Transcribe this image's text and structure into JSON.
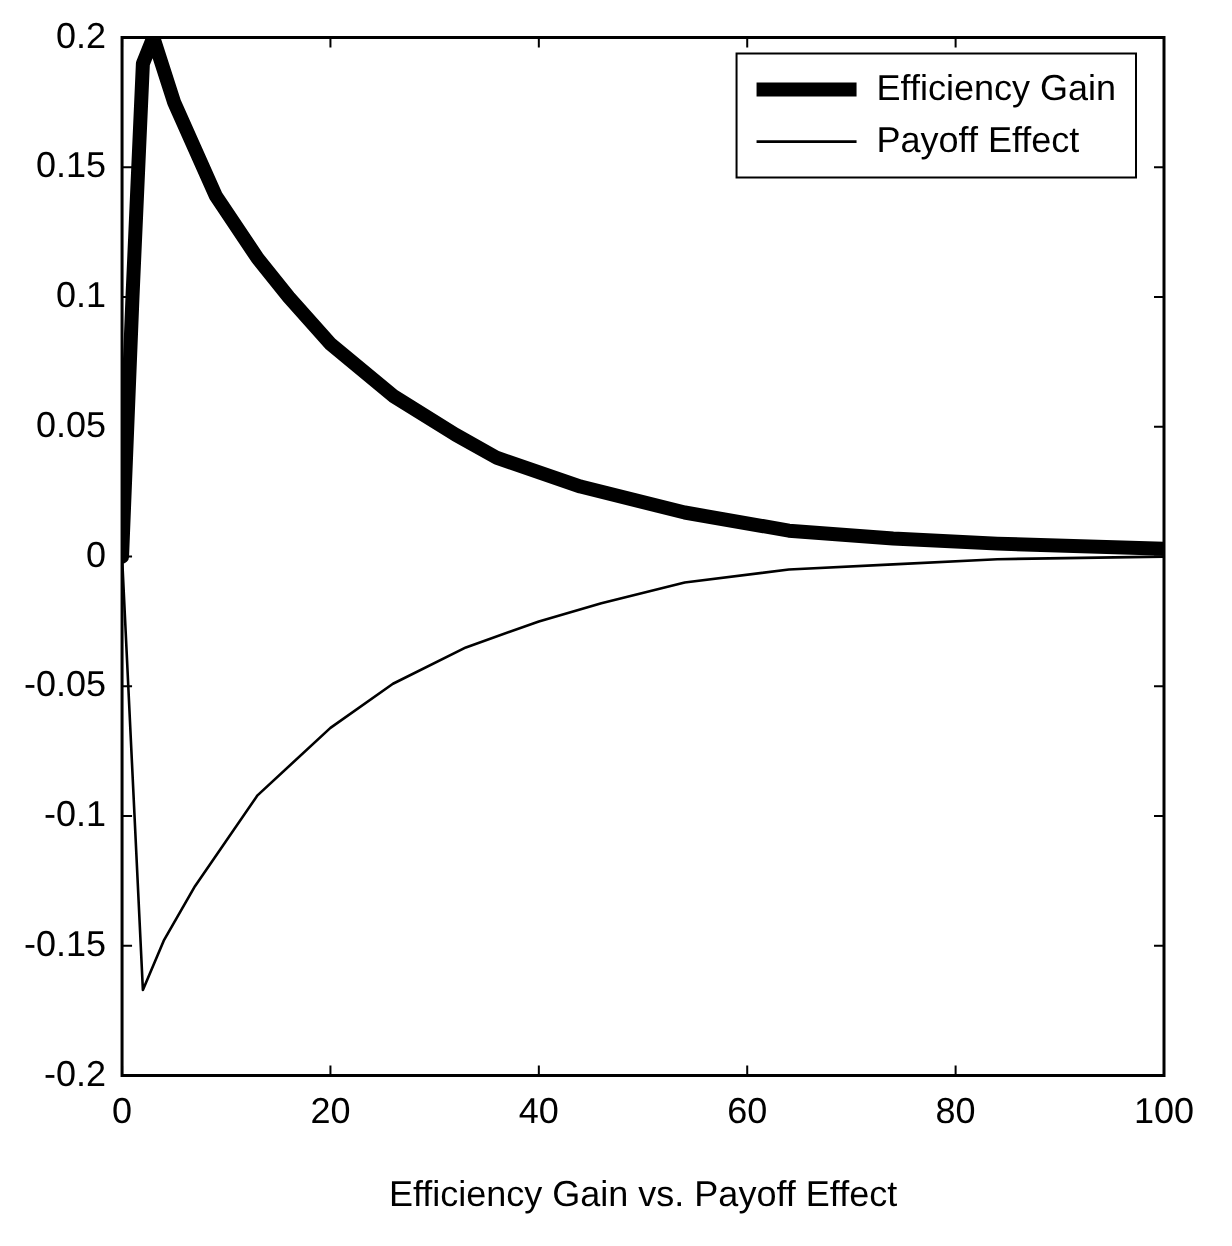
{
  "chart_data": {
    "type": "line",
    "xlabel": "Efficiency Gain vs. Payoff Effect",
    "xlim": [
      0,
      100
    ],
    "xticks": [
      0,
      20,
      40,
      60,
      80,
      100
    ],
    "ylim": [
      -0.2,
      0.2
    ],
    "yticks": [
      -0.2,
      -0.15,
      -0.1,
      -0.05,
      0,
      0.05,
      0.1,
      0.15,
      0.2
    ],
    "grid": false,
    "legend": "top right",
    "marker": "none",
    "line_style": "solid",
    "series": [
      {
        "name": "Efficiency Gain",
        "color": "#000000",
        "x": [
          0,
          1,
          2,
          3,
          5,
          7,
          9,
          13,
          16,
          20,
          26,
          32,
          36,
          44,
          54,
          64,
          74,
          84,
          100
        ],
        "values": [
          0,
          0.1,
          0.19,
          0.2,
          0.175,
          0.157,
          0.139,
          0.115,
          0.1,
          0.082,
          0.062,
          0.047,
          0.038,
          0.027,
          0.017,
          0.01,
          0.007,
          0.005,
          0.003
        ]
      },
      {
        "name": "Payoff Effect",
        "color": "#000000",
        "x": [
          0,
          2,
          4,
          7,
          13,
          20,
          26,
          33,
          40,
          46,
          54,
          64,
          74,
          84,
          100
        ],
        "values": [
          0,
          -0.167,
          -0.148,
          -0.127,
          -0.092,
          -0.066,
          -0.049,
          -0.035,
          -0.025,
          -0.018,
          -0.01,
          -0.005,
          -0.003,
          -0.001,
          0
        ]
      }
    ]
  }
}
